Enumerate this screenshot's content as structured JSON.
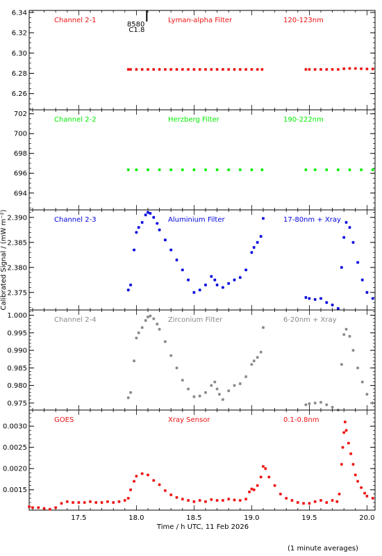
{
  "figure": {
    "xlabel": "Time / h UTC, 11 Feb 2026",
    "ylabel": "Calibrated Signal / (mW m⁻²)",
    "footnote": "(1 minute averages)"
  },
  "colors": {
    "red": "#ee1111",
    "green": "#00ee00",
    "blue": "#0000dd",
    "grey": "#888888",
    "axis": "#000000"
  },
  "chart_data": [
    {
      "type": "scatter",
      "panel": "channel-2-1",
      "channel": "Channel 2-1",
      "filter": "Lyman-alpha Filter",
      "band": "120-123nm",
      "color": "#ee1111",
      "xlim": [
        17.07,
        20.07
      ],
      "ylim": [
        6.244,
        6.342
      ],
      "yticks": [
        "6.26",
        "6.28",
        "6.30",
        "6.32",
        "6.34"
      ],
      "yminor_step": 0.005,
      "flare_marker": {
        "x": 18.09,
        "label_top": "8580",
        "label_bottom": "C1.8"
      },
      "series": [
        {
          "x": [
            17.93,
            17.95,
            18.0,
            18.05,
            18.1,
            18.15,
            18.2,
            18.25,
            18.3,
            18.35,
            18.4,
            18.45,
            18.5,
            18.55,
            18.6,
            18.65,
            18.7,
            18.75,
            18.8,
            18.85,
            18.9,
            18.95,
            19.0,
            19.05,
            19.09,
            19.47,
            19.5,
            19.55,
            19.6,
            19.65,
            19.7,
            19.75,
            19.8,
            19.85,
            19.9,
            19.95,
            20.0,
            20.05
          ],
          "y": [
            6.2838,
            6.2838,
            6.2838,
            6.2838,
            6.2838,
            6.2838,
            6.2838,
            6.2838,
            6.2838,
            6.2838,
            6.2838,
            6.2838,
            6.2838,
            6.2838,
            6.2838,
            6.2838,
            6.2838,
            6.2838,
            6.2838,
            6.2838,
            6.2838,
            6.2838,
            6.2838,
            6.2838,
            6.2838,
            6.2838,
            6.2838,
            6.2838,
            6.2838,
            6.2838,
            6.2838,
            6.2838,
            6.2845,
            6.2848,
            6.2848,
            6.2845,
            6.2843,
            6.2843
          ]
        }
      ]
    },
    {
      "type": "scatter",
      "panel": "channel-2-2",
      "channel": "Channel 2-2",
      "filter": "Herzberg Filter",
      "band": "190-222nm",
      "color": "#00ee00",
      "xlim": [
        17.07,
        20.07
      ],
      "ylim": [
        692.3,
        702.4
      ],
      "yticks": [
        "694",
        "696",
        "698",
        "700",
        "702"
      ],
      "yminor_step": 0.5,
      "series": [
        {
          "x": [
            17.93,
            18.0,
            18.1,
            18.2,
            18.3,
            18.4,
            18.5,
            18.6,
            18.7,
            18.8,
            18.9,
            19.0,
            19.09,
            19.47,
            19.55,
            19.65,
            19.75,
            19.85,
            19.95,
            20.05
          ],
          "y": [
            696.35,
            696.35,
            696.35,
            696.35,
            696.35,
            696.35,
            696.35,
            696.35,
            696.35,
            696.35,
            696.35,
            696.35,
            696.35,
            696.35,
            696.35,
            696.35,
            696.35,
            696.35,
            696.35,
            696.35
          ]
        }
      ]
    },
    {
      "type": "scatter",
      "panel": "channel-2-3",
      "channel": "Channel 2-3",
      "filter": "Aluminium Filter",
      "band": "17-80nm + Xray",
      "color": "#0000dd",
      "xlim": [
        17.07,
        20.07
      ],
      "ylim": [
        2.3715,
        2.3915
      ],
      "yticks": [
        "2.375",
        "2.380",
        "2.385",
        "2.390"
      ],
      "yminor_step": 0.001,
      "series": [
        {
          "x": [
            17.93,
            17.95,
            17.98,
            18.0,
            18.02,
            18.05,
            18.08,
            18.1,
            18.12,
            18.15,
            18.18,
            18.2,
            18.25,
            18.3,
            18.35,
            18.4,
            18.45,
            18.5,
            18.55,
            18.6,
            18.65,
            18.68,
            18.7,
            18.75,
            18.8,
            18.85,
            18.9,
            18.95,
            19.0,
            19.02,
            19.05,
            19.08,
            19.1,
            19.47,
            19.5,
            19.55,
            19.6,
            19.65,
            19.7,
            19.75,
            19.78,
            19.8,
            19.82,
            19.85,
            19.88,
            19.92,
            19.96,
            20.0,
            20.05
          ],
          "y": [
            2.3755,
            2.3765,
            2.3835,
            2.387,
            2.388,
            2.389,
            2.3905,
            2.391,
            2.3908,
            2.39,
            2.3888,
            2.3875,
            2.3855,
            2.3835,
            2.3815,
            2.3795,
            2.3775,
            2.375,
            2.3755,
            2.3765,
            2.3782,
            2.3775,
            2.3765,
            2.376,
            2.3768,
            2.3775,
            2.378,
            2.3795,
            2.383,
            2.384,
            2.385,
            2.3862,
            2.3898,
            2.374,
            2.3738,
            2.3736,
            2.3738,
            2.373,
            2.3725,
            2.3718,
            2.38,
            2.386,
            2.389,
            2.388,
            2.385,
            2.381,
            2.3775,
            2.375,
            2.3738
          ]
        }
      ]
    },
    {
      "type": "scatter",
      "panel": "channel-2-4",
      "channel": "Channel 2-4",
      "filter": "Zirconium Filter",
      "band": "6-20nm + Xray",
      "color": "#888888",
      "xlim": [
        17.07,
        20.07
      ],
      "ylim": [
        0.973,
        1.0015
      ],
      "yticks": [
        "0.975",
        "0.980",
        "0.985",
        "0.990",
        "0.995",
        "1.000"
      ],
      "yminor_step": 0.001,
      "series": [
        {
          "x": [
            17.93,
            17.95,
            17.98,
            18.0,
            18.02,
            18.05,
            18.08,
            18.1,
            18.12,
            18.15,
            18.18,
            18.2,
            18.25,
            18.3,
            18.35,
            18.4,
            18.45,
            18.5,
            18.55,
            18.6,
            18.65,
            18.68,
            18.7,
            18.72,
            18.75,
            18.8,
            18.85,
            18.9,
            18.95,
            19.0,
            19.02,
            19.05,
            19.08,
            19.1,
            19.47,
            19.5,
            19.55,
            19.6,
            19.65,
            19.7,
            19.75,
            19.78,
            19.8,
            19.82,
            19.85,
            19.88,
            19.92,
            19.96,
            20.0,
            20.05
          ],
          "y": [
            0.9765,
            0.978,
            0.987,
            0.9935,
            0.995,
            0.9965,
            0.9985,
            0.9995,
            0.9998,
            0.999,
            0.9975,
            0.996,
            0.9925,
            0.9885,
            0.985,
            0.9815,
            0.979,
            0.9768,
            0.977,
            0.978,
            0.98,
            0.981,
            0.979,
            0.9775,
            0.976,
            0.9785,
            0.98,
            0.9805,
            0.9825,
            0.986,
            0.987,
            0.988,
            0.9895,
            0.9965,
            0.9745,
            0.9748,
            0.975,
            0.9752,
            0.9745,
            0.9738,
            0.973,
            0.986,
            0.9945,
            0.996,
            0.994,
            0.99,
            0.985,
            0.981,
            0.9775,
            0.975
          ]
        }
      ]
    },
    {
      "type": "scatter",
      "panel": "goes",
      "channel": "GOES",
      "filter": "Xray Sensor",
      "band": "0.1-0.8nm",
      "color": "#ee1111",
      "xlim": [
        17.07,
        20.07
      ],
      "ylim": [
        0.00102,
        0.00338
      ],
      "yticks": [
        "0.0015",
        "0.0020",
        "0.0025",
        "0.0030"
      ],
      "yminor_step": 0.0001,
      "xticks": [
        "17.5",
        "18.0",
        "18.5",
        "19.0",
        "19.5",
        "20.0"
      ],
      "xminor_step": 0.1,
      "series": [
        {
          "x": [
            17.07,
            17.1,
            17.15,
            17.2,
            17.25,
            17.3,
            17.35,
            17.4,
            17.45,
            17.5,
            17.55,
            17.6,
            17.65,
            17.7,
            17.75,
            17.8,
            17.85,
            17.9,
            17.93,
            17.95,
            17.98,
            18.0,
            18.05,
            18.1,
            18.15,
            18.2,
            18.25,
            18.3,
            18.35,
            18.4,
            18.45,
            18.5,
            18.55,
            18.6,
            18.65,
            18.7,
            18.75,
            18.8,
            18.85,
            18.9,
            18.95,
            18.98,
            19.0,
            19.02,
            19.05,
            19.08,
            19.1,
            19.12,
            19.15,
            19.2,
            19.25,
            19.3,
            19.35,
            19.4,
            19.45,
            19.5,
            19.55,
            19.6,
            19.65,
            19.7,
            19.74,
            19.76,
            19.78,
            19.79,
            19.8,
            19.81,
            19.82,
            19.84,
            19.86,
            19.88,
            19.9,
            19.92,
            19.95,
            19.98,
            20.0,
            20.05
          ],
          "y": [
            0.0011,
            0.00108,
            0.00108,
            0.00106,
            0.00104,
            0.00108,
            0.00118,
            0.00122,
            0.0012,
            0.0012,
            0.0012,
            0.00122,
            0.0012,
            0.0012,
            0.00122,
            0.0012,
            0.00122,
            0.00125,
            0.0013,
            0.0015,
            0.0017,
            0.00182,
            0.00188,
            0.00185,
            0.00172,
            0.00162,
            0.00148,
            0.00138,
            0.00132,
            0.00128,
            0.00125,
            0.00122,
            0.00125,
            0.00122,
            0.00127,
            0.00125,
            0.00125,
            0.00128,
            0.00126,
            0.00125,
            0.00128,
            0.00145,
            0.00152,
            0.0015,
            0.0016,
            0.0018,
            0.00205,
            0.002,
            0.0018,
            0.0016,
            0.0014,
            0.0013,
            0.00125,
            0.0012,
            0.00118,
            0.00118,
            0.00122,
            0.00125,
            0.0012,
            0.00125,
            0.00122,
            0.0014,
            0.0021,
            0.0025,
            0.00285,
            0.0031,
            0.0029,
            0.0026,
            0.00235,
            0.0021,
            0.00185,
            0.0017,
            0.00155,
            0.00142,
            0.00135,
            0.0013
          ]
        }
      ]
    }
  ]
}
